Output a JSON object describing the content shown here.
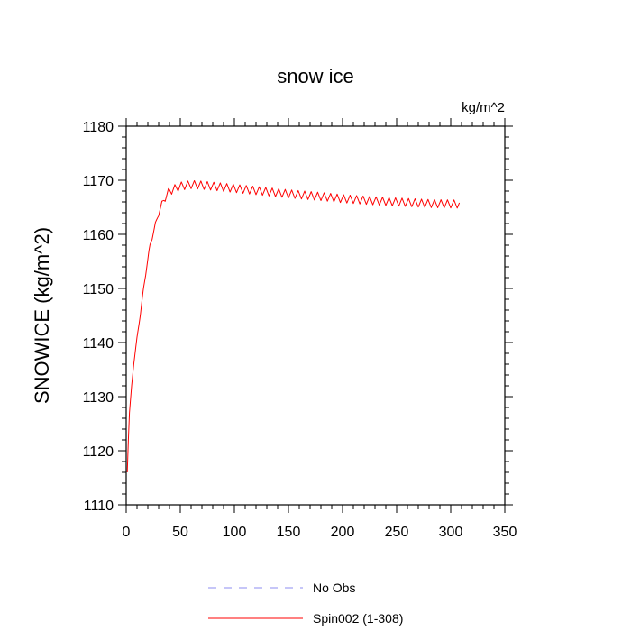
{
  "chart_data": {
    "type": "line",
    "title": "snow ice",
    "unit_label": "kg/m^2",
    "ylabel": "SNOWICE  (kg/m^2)",
    "xlabel": "",
    "xlim": [
      0,
      350
    ],
    "ylim": [
      1110,
      1180
    ],
    "x_ticks": [
      0,
      50,
      100,
      150,
      200,
      250,
      300,
      350
    ],
    "y_ticks": [
      1110,
      1120,
      1130,
      1140,
      1150,
      1160,
      1170,
      1180
    ],
    "grid": false,
    "legend": {
      "position": "bottom",
      "entries": [
        {
          "label": "No Obs",
          "color": "#8c8cf0",
          "dash": "dashed"
        },
        {
          "label": "Spin002 (1-308)",
          "color": "#ff0000",
          "dash": "solid"
        }
      ]
    },
    "series": [
      {
        "name": "Spin002 (1-308)",
        "color": "#ff0000",
        "x_start": 1,
        "x_end": 308,
        "anchors": [
          [
            1,
            1116
          ],
          [
            2,
            1122
          ],
          [
            3,
            1127
          ],
          [
            5,
            1132
          ],
          [
            7,
            1136
          ],
          [
            10,
            1141
          ],
          [
            13,
            1145
          ],
          [
            16,
            1150
          ],
          [
            19,
            1154
          ],
          [
            22,
            1158
          ],
          [
            26,
            1161
          ],
          [
            30,
            1164
          ],
          [
            35,
            1166.5
          ],
          [
            40,
            1168
          ],
          [
            50,
            1168.9
          ],
          [
            60,
            1169.2
          ],
          [
            70,
            1169.1
          ],
          [
            80,
            1168.9
          ],
          [
            100,
            1168.5
          ],
          [
            120,
            1168.1
          ],
          [
            150,
            1167.5
          ],
          [
            180,
            1167
          ],
          [
            200,
            1166.6
          ],
          [
            230,
            1166.2
          ],
          [
            260,
            1165.9
          ],
          [
            280,
            1165.7
          ],
          [
            308,
            1165.6
          ]
        ],
        "seasonal_amplitude": 0.75,
        "period": 6
      }
    ]
  }
}
